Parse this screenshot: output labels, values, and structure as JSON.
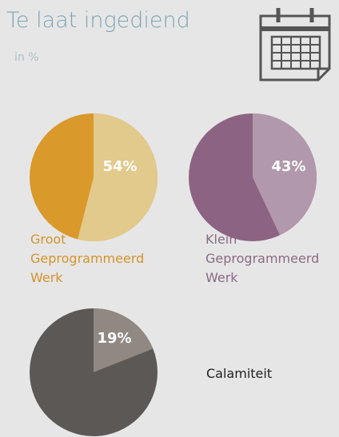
{
  "header": {
    "title": "Te laat ingediend",
    "subtitle": "in %"
  },
  "chart_data": [
    {
      "type": "pie",
      "values": [
        54
      ],
      "value_labels": [
        "54%"
      ],
      "colors": [
        "#e2c98c",
        "#d9992b"
      ],
      "label": "Groot Geprogrammeerd Werk",
      "label_color": "#d4932b"
    },
    {
      "type": "pie",
      "values": [
        43
      ],
      "value_labels": [
        "43%"
      ],
      "colors": [
        "#b298ac",
        "#8c6383"
      ],
      "label": "Klein Geprogrammeerd Werk",
      "label_color": "#8a6a84"
    },
    {
      "type": "pie",
      "values": [
        19
      ],
      "value_labels": [
        "19%"
      ],
      "colors": [
        "#908883",
        "#5b5856"
      ],
      "label": "Calamiteit",
      "label_color": "#222222"
    }
  ]
}
